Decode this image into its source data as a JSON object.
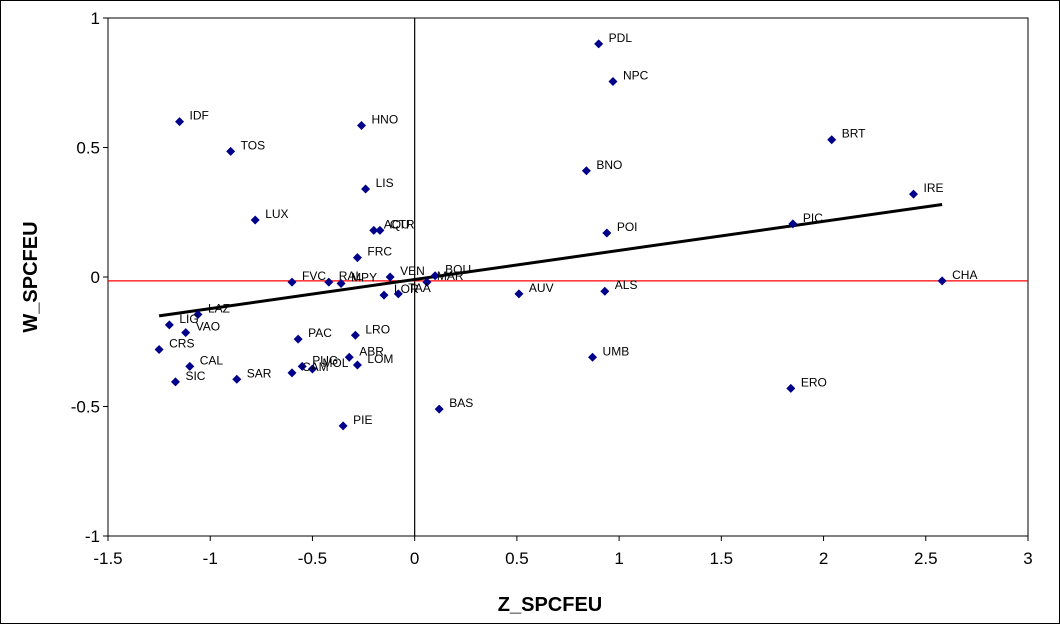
{
  "chart_data": {
    "type": "scatter",
    "title": "",
    "xlabel": "Z_SPCFEU",
    "ylabel": "W_SPCFEU",
    "xlim": [
      -1.5,
      3
    ],
    "ylim": [
      -1,
      1
    ],
    "x_ticks": [
      -1.5,
      -1,
      -0.5,
      0,
      0.5,
      1,
      1.5,
      2,
      2.5,
      3
    ],
    "y_ticks": [
      -1,
      -0.5,
      0,
      0.5,
      1
    ],
    "x_tick_labels": [
      "-1.5",
      "-1",
      "-0.5",
      "0",
      "0.5",
      "1",
      "1.5",
      "2",
      "2.5",
      "3"
    ],
    "y_tick_labels": [
      "-1",
      "-0.5",
      "0",
      "0.5",
      "1"
    ],
    "grid": false,
    "marker_color": "#00008B",
    "regression_line": {
      "x": [
        -1.25,
        2.58
      ],
      "y": [
        -0.15,
        0.28
      ],
      "color": "#000000"
    },
    "horizontal_reference": {
      "y": -0.015,
      "color": "#FF0000"
    },
    "vertical_reference": {
      "x": 0,
      "color": "#000000"
    },
    "points": [
      {
        "label": "PDL",
        "x": 0.9,
        "y": 0.9
      },
      {
        "label": "NPC",
        "x": 0.97,
        "y": 0.755
      },
      {
        "label": "IDF",
        "x": -1.15,
        "y": 0.6
      },
      {
        "label": "HNO",
        "x": -0.26,
        "y": 0.585
      },
      {
        "label": "TOS",
        "x": -0.9,
        "y": 0.485
      },
      {
        "label": "BRT",
        "x": 2.04,
        "y": 0.53
      },
      {
        "label": "BNO",
        "x": 0.84,
        "y": 0.41
      },
      {
        "label": "LIS",
        "x": -0.24,
        "y": 0.34
      },
      {
        "label": "IRE",
        "x": 2.44,
        "y": 0.32
      },
      {
        "label": "LUX",
        "x": -0.78,
        "y": 0.22
      },
      {
        "label": "AQU",
        "x": -0.2,
        "y": 0.18
      },
      {
        "label": "CTR",
        "x": -0.17,
        "y": 0.18
      },
      {
        "label": "POI",
        "x": 0.94,
        "y": 0.17
      },
      {
        "label": "PIC",
        "x": 1.85,
        "y": 0.205
      },
      {
        "label": "FRC",
        "x": -0.28,
        "y": 0.075
      },
      {
        "label": "BOU",
        "x": 0.1,
        "y": 0.005
      },
      {
        "label": "VEN",
        "x": -0.12,
        "y": 0.0
      },
      {
        "label": "FVC",
        "x": -0.6,
        "y": -0.02
      },
      {
        "label": "RAL",
        "x": -0.42,
        "y": -0.02
      },
      {
        "label": "MPY",
        "x": -0.36,
        "y": -0.025
      },
      {
        "label": "MAR",
        "x": 0.06,
        "y": -0.02
      },
      {
        "label": "CHA",
        "x": 2.58,
        "y": -0.015
      },
      {
        "label": "LOR",
        "x": -0.15,
        "y": -0.07
      },
      {
        "label": "TAA",
        "x": -0.08,
        "y": -0.065
      },
      {
        "label": "AUV",
        "x": 0.51,
        "y": -0.065
      },
      {
        "label": "ALS",
        "x": 0.93,
        "y": -0.055
      },
      {
        "label": "LAZ",
        "x": -1.06,
        "y": -0.145
      },
      {
        "label": "LIG",
        "x": -1.2,
        "y": -0.185
      },
      {
        "label": "VAO",
        "x": -1.12,
        "y": -0.215
      },
      {
        "label": "LRO",
        "x": -0.29,
        "y": -0.225
      },
      {
        "label": "PAC",
        "x": -0.57,
        "y": -0.24
      },
      {
        "label": "CRS",
        "x": -1.25,
        "y": -0.28
      },
      {
        "label": "ABR",
        "x": -0.32,
        "y": -0.31
      },
      {
        "label": "UMB",
        "x": 0.87,
        "y": -0.31
      },
      {
        "label": "CAL",
        "x": -1.1,
        "y": -0.345
      },
      {
        "label": "PUG",
        "x": -0.55,
        "y": -0.345
      },
      {
        "label": "LOM",
        "x": -0.28,
        "y": -0.34
      },
      {
        "label": "MOL",
        "x": -0.5,
        "y": -0.355
      },
      {
        "label": "CAM",
        "x": -0.6,
        "y": -0.37
      },
      {
        "label": "SAR",
        "x": -0.87,
        "y": -0.395
      },
      {
        "label": "SIC",
        "x": -1.17,
        "y": -0.405
      },
      {
        "label": "ERO",
        "x": 1.84,
        "y": -0.43
      },
      {
        "label": "BAS",
        "x": 0.12,
        "y": -0.51
      },
      {
        "label": "PIE",
        "x": -0.35,
        "y": -0.575
      }
    ]
  }
}
